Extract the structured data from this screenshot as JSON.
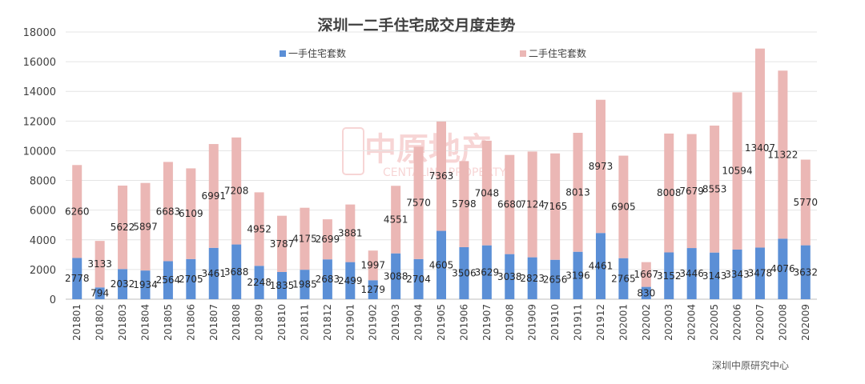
{
  "chart_data": {
    "type": "bar",
    "stacked": true,
    "title": "深圳一二手住宅成交月度走势",
    "source": "深圳中原研究中心",
    "watermark": {
      "text_cn": "中原地产",
      "text_en": "CENTALINE PROPERTY"
    },
    "ylim": [
      0,
      18000
    ],
    "yticks": [
      0,
      2000,
      4000,
      6000,
      8000,
      10000,
      12000,
      14000,
      16000,
      18000
    ],
    "grid": true,
    "legend_position": "top",
    "categories": [
      "201801",
      "201802",
      "201803",
      "201804",
      "201805",
      "201806",
      "201807",
      "201808",
      "201809",
      "201810",
      "201811",
      "201812",
      "201901",
      "201902",
      "201903",
      "201904",
      "201905",
      "201906",
      "201907",
      "201908",
      "201909",
      "201910",
      "201911",
      "201912",
      "202001",
      "202002",
      "202003",
      "202004",
      "202005",
      "202006",
      "202007",
      "202008",
      "202009"
    ],
    "series": [
      {
        "name": "一手住宅套数",
        "color": "#5b8fd6",
        "values": [
          2778,
          794,
          2032,
          1934,
          2564,
          2705,
          3461,
          3688,
          2248,
          1835,
          1985,
          2683,
          2499,
          1279,
          3088,
          2704,
          4605,
          3506,
          3629,
          3038,
          2823,
          2656,
          3196,
          4461,
          2765,
          830,
          3152,
          3446,
          3143,
          3343,
          3478,
          4076,
          3632
        ],
        "labels": [
          "2778",
          "794",
          "2032",
          "1934",
          "2564",
          "2705",
          "3461",
          "3688",
          "2248",
          "1835",
          "1985",
          "2683",
          "2499",
          "1279",
          "3088",
          "2704",
          "4605",
          "3506",
          "3629",
          "3038",
          "2823",
          "2656",
          "3196",
          "4461",
          "2765",
          "830",
          "3152",
          "3446",
          "3143",
          "3343",
          "3478",
          "4076",
          "3632"
        ]
      },
      {
        "name": "二手住宅套数",
        "color": "#ebb7b5",
        "values": [
          6260,
          3133,
          5622,
          5897,
          6683,
          6109,
          6991,
          7208,
          4952,
          3787,
          4175,
          2699,
          3881,
          1997,
          4551,
          7570,
          7363,
          5798,
          7048,
          6680,
          7124,
          7165,
          8013,
          8973,
          6905,
          1667,
          8008,
          7679,
          8553,
          10594,
          13407,
          11322,
          5770
        ],
        "labels": [
          "6260",
          "3133",
          "5622",
          "5897",
          "6683",
          "6109",
          "6991",
          "7208",
          "4952",
          "3787",
          "4175",
          "2699",
          "3881",
          "1997",
          "4551",
          "7570",
          "7363",
          "5798",
          "7048",
          "6680",
          "7124",
          "7165",
          "8013",
          "8973",
          "6905",
          "1667",
          "8008",
          "7679",
          "8553",
          "10594",
          "13407",
          "11322",
          "5770"
        ]
      }
    ]
  }
}
